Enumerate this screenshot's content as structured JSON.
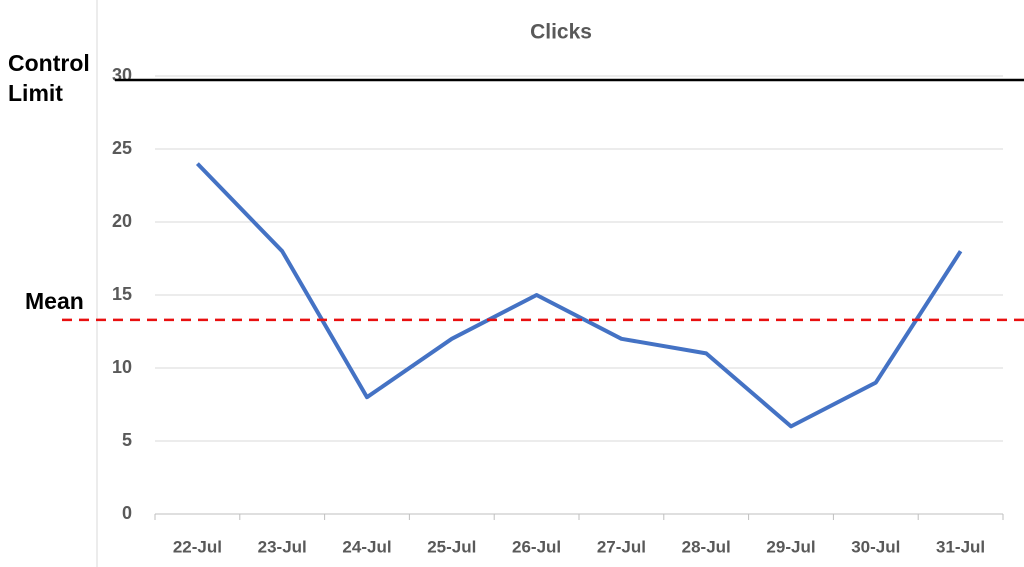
{
  "chart_data": {
    "type": "line",
    "title": "Clicks",
    "categories": [
      "22-Jul",
      "23-Jul",
      "24-Jul",
      "25-Jul",
      "26-Jul",
      "27-Jul",
      "28-Jul",
      "29-Jul",
      "30-Jul",
      "31-Jul"
    ],
    "series": [
      {
        "name": "Clicks",
        "color": "#4472c4",
        "values": [
          24,
          18,
          8,
          12,
          15,
          12,
          11,
          6,
          9,
          18
        ]
      }
    ],
    "ylim": [
      0,
      30
    ],
    "yticks": [
      0,
      5,
      10,
      15,
      20,
      25,
      30
    ],
    "grid": true,
    "annotations": [
      {
        "text": "Control Limit",
        "value": 30,
        "color": "#000000",
        "dash": false
      },
      {
        "text": "Mean",
        "value": 13.3,
        "color": "#e81010",
        "dash": true
      }
    ]
  }
}
